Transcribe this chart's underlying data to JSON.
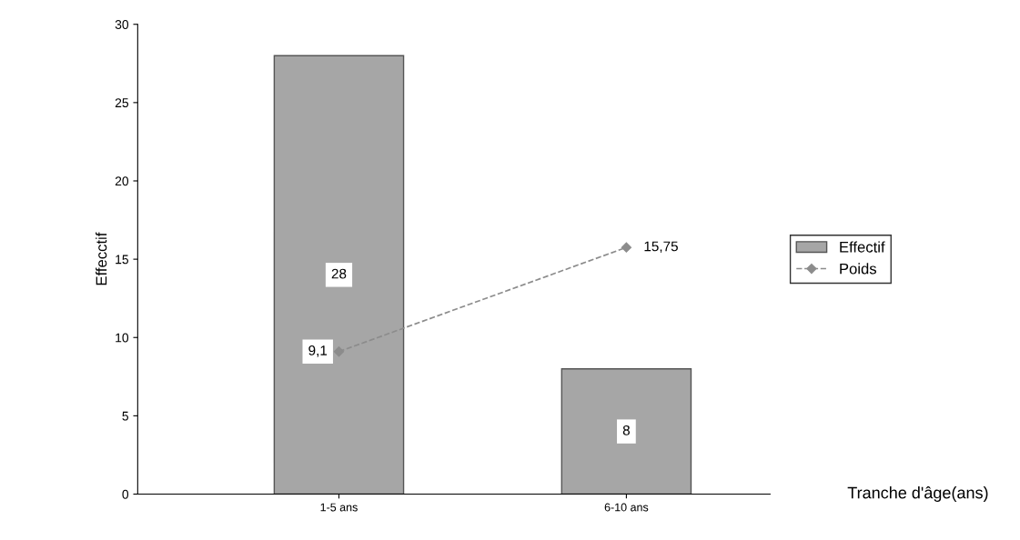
{
  "chart_data": {
    "type": "bar",
    "xlabel": "Tranche d'âge(ans)",
    "ylabel": "Effecctif",
    "categories": [
      "1-5 ans",
      "6-10 ans"
    ],
    "series": [
      {
        "name": "Effectif",
        "color": "#a6a6a6",
        "values": [
          28,
          8
        ],
        "value_labels": [
          "28",
          "8"
        ]
      },
      {
        "name": "Poids",
        "type": "line",
        "color": "#8c8c8c",
        "values": [
          9.1,
          15.75
        ],
        "value_labels": [
          "9,1",
          "15,75"
        ],
        "marker": "diamond",
        "line_style": "dashed"
      }
    ],
    "ylim": [
      0,
      30
    ],
    "yticks": [
      0,
      5,
      10,
      15,
      20,
      25,
      30
    ],
    "grid": false,
    "legend": "right"
  }
}
